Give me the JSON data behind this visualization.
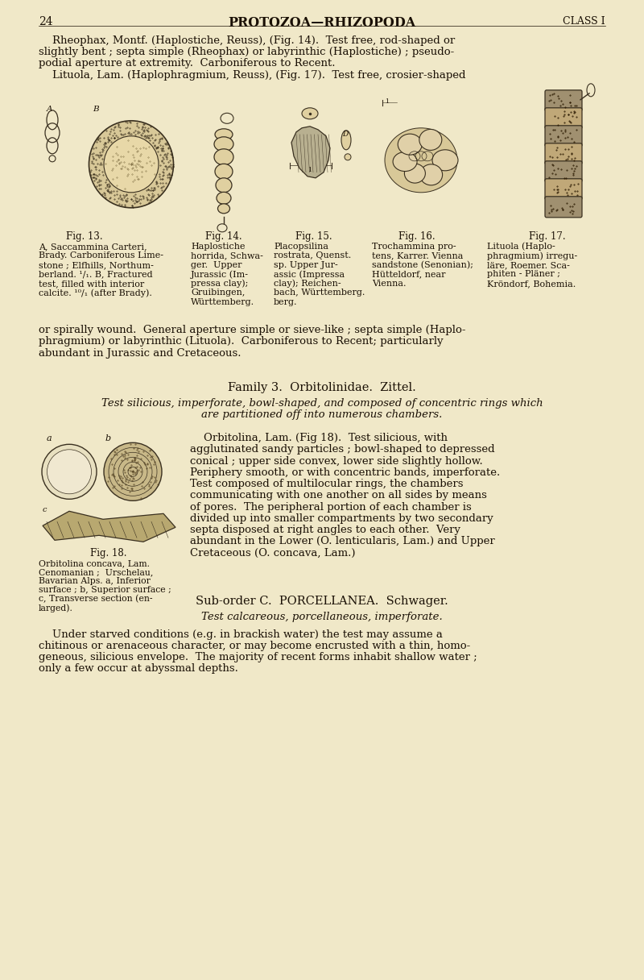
{
  "bg_color": "#f0e8c8",
  "text_color": "#1a1005",
  "page_number": "24",
  "header_title": "PROTOZOA—RHIZOPODA",
  "header_right": "CLASS I",
  "figsize": [
    8.0,
    12.16
  ],
  "dpi": 100,
  "para1_lines": [
    "    Rheophax, Montf. (Haplostiche, Reuss), (Fig. 14).  Test free, rod-shaped or",
    "slightly bent ; septa simple (Rheophax) or labyrinthic (Haplostiche) ; pseudo-",
    "podial aperture at extremity.  Carboniferous to Recent.",
    "    Lituola, Lam. (Haplophragmium, Reuss), (Fig. 17).  Test free, crosier-shaped"
  ],
  "fig13_label": "Fig. 13.",
  "fig14_label": "Fig. 14.",
  "fig15_label": "Fig. 15.",
  "fig16_label": "Fig. 16.",
  "fig17_label": "Fig. 17.",
  "fig13_caption_lines": [
    "A, Saccammina Carteri,",
    "Brady. Carboniferous Lime-",
    "stone ; Elfhills, Northum-",
    "berland. ¹/₁. B, Fractured",
    "test, filled with interior",
    "calcite. ¹⁰/₁ (after Brady)."
  ],
  "fig14_caption_lines": [
    "Haplostiche",
    "horrida, Schwa-",
    "ger.  Upper",
    "Jurassic (Im-",
    "pressa clay);",
    "Gruibingen,",
    "Württemberg."
  ],
  "fig15_caption_lines": [
    "Placopsilina",
    "rostrata, Quenst.",
    "sp. Upper Jur-",
    "assic (Impressa",
    "clay); Reichen-",
    "bach, Württemberg.",
    "berg."
  ],
  "fig16_caption_lines": [
    "Trochammina pro-",
    "tens, Karrer. Vienna",
    "sandstone (Senonian);",
    "Hütteldorf, near",
    "Vienna."
  ],
  "fig17_caption_lines": [
    "Lituola (Haplo-",
    "phragmium) irregu-",
    "läre, Roemer. Sca-",
    "phiten - Pläner ;",
    "Kröndorf, Bohemia."
  ],
  "para3_lines": [
    "or spirally wound.  General aperture simple or sieve-like ; septa simple (Haplo-",
    "phragmium) or labyrinthic (Lituola).  Carboniferous to Recent; particularly",
    "abundant in Jurassic and Cretaceous."
  ],
  "family3_title": "Family 3.  Orbitolinidae.  Zittel.",
  "family3_italic_lines": [
    "Test silicious, imperforate, bowl-shaped, and composed of concentric rings which",
    "are partitioned off into numerous chambers."
  ],
  "fig18_label": "Fig. 18.",
  "fig18_caption_lines": [
    "Orbitolina concava, Lam.",
    "Cenomanian ;  Urschelau,",
    "Bavarian Alps. a, Inferior",
    "surface ; b, Superior surface ;",
    "c, Transverse section (en-",
    "larged)."
  ],
  "orbitolina_para_lines": [
    "    Orbitolina, Lam. (Fig 18).  Test silicious, with",
    "agglutinated sandy particles ; bowl-shaped to depressed",
    "conical ; upper side convex, lower side slightly hollow.",
    "Periphery smooth, or with concentric bands, imperforate.",
    "Test composed of multilocular rings, the chambers",
    "communicating with one another on all sides by means",
    "of pores.  The peripheral portion of each chamber is",
    "divided up into smaller compartments by two secondary",
    "septa disposed at right angles to each other.  Very",
    "abundant in the Lower (O. lenticularis, Lam.) and Upper",
    "Cretaceous (O. concava, Lam.)"
  ],
  "suborder_title": "Sub-order C.  PORCELLANEA.  Schwager.",
  "suborder_italic": "Test calcareous, porcellaneous, imperforate.",
  "suborder_para_lines": [
    "    Under starved conditions (e.g. in brackish water) the test may assume a",
    "chitinous or arenaceous character, or may become encrusted with a thin, homo-",
    "geneous, silicious envelope.  The majority of recent forms inhabit shallow water ;",
    "only a few occur at abyssmal depths."
  ]
}
